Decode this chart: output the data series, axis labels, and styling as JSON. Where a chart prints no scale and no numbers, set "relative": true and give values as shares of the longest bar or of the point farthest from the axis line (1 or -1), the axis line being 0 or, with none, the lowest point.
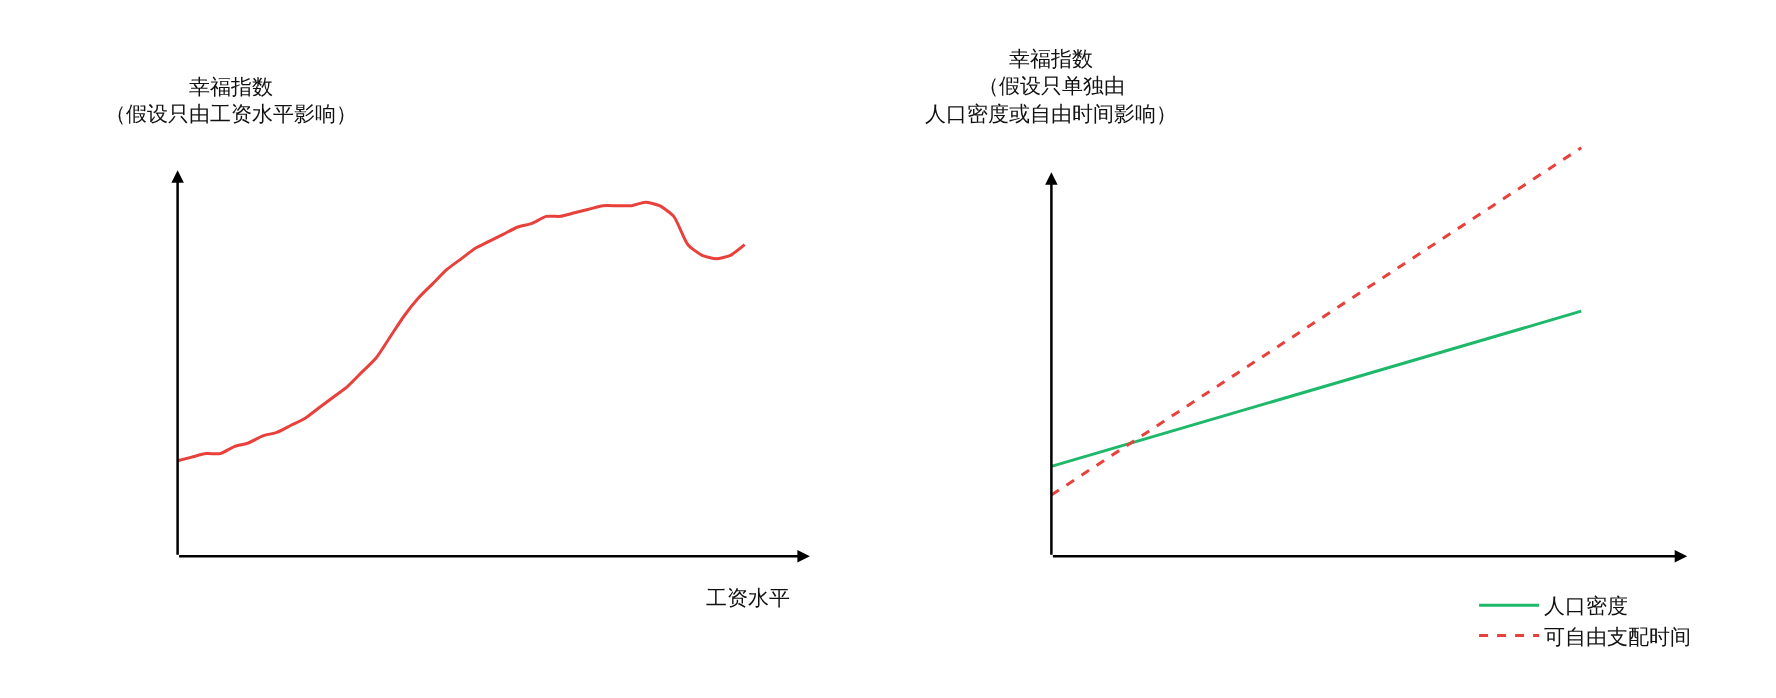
{
  "chart_data": [
    {
      "type": "line",
      "ylabel": "幸福指数（假设只由工资水平影响）",
      "xlabel": "工资水平",
      "relative": true,
      "legend": false,
      "marker": "none",
      "categories": [
        null,
        null,
        null,
        null,
        null,
        null,
        null,
        null,
        null,
        null,
        null,
        null,
        null,
        null,
        null,
        null,
        null,
        null,
        null,
        null,
        null,
        null,
        null,
        null,
        null,
        null,
        null,
        null,
        null,
        null,
        null,
        null,
        null,
        null,
        null,
        null,
        null,
        null,
        null,
        null,
        null
      ],
      "series": [
        {
          "color": "#e8413c",
          "line_style": "solid",
          "values": [
            0.27,
            0.28,
            0.29,
            0.29,
            0.31,
            0.32,
            0.34,
            0.35,
            0.37,
            0.39,
            0.42,
            0.45,
            0.48,
            0.52,
            0.56,
            0.62,
            0.68,
            0.73,
            0.77,
            0.81,
            0.84,
            0.87,
            0.89,
            0.91,
            0.93,
            0.94,
            0.96,
            0.96,
            0.97,
            0.98,
            0.99,
            0.99,
            0.99,
            1,
            0.99,
            0.96,
            0.88,
            0.85,
            0.84,
            0.85,
            0.88
          ]
        }
      ]
    },
    {
      "type": "line",
      "ylabel": "幸福指数（假设只单独由人口密度或自由时间影响）",
      "relative": true,
      "legend": "bottom right",
      "marker": "none",
      "categories": [
        null,
        null
      ],
      "series": [
        {
          "name": "人口密度",
          "color": "#1db86a",
          "line_style": "solid",
          "values": [
            0.22,
            0.6
          ]
        },
        {
          "name": "可自由支配时间",
          "color": "#e8413c",
          "line_style": "dashed",
          "values": [
            0.15,
            1.0
          ]
        }
      ]
    }
  ]
}
